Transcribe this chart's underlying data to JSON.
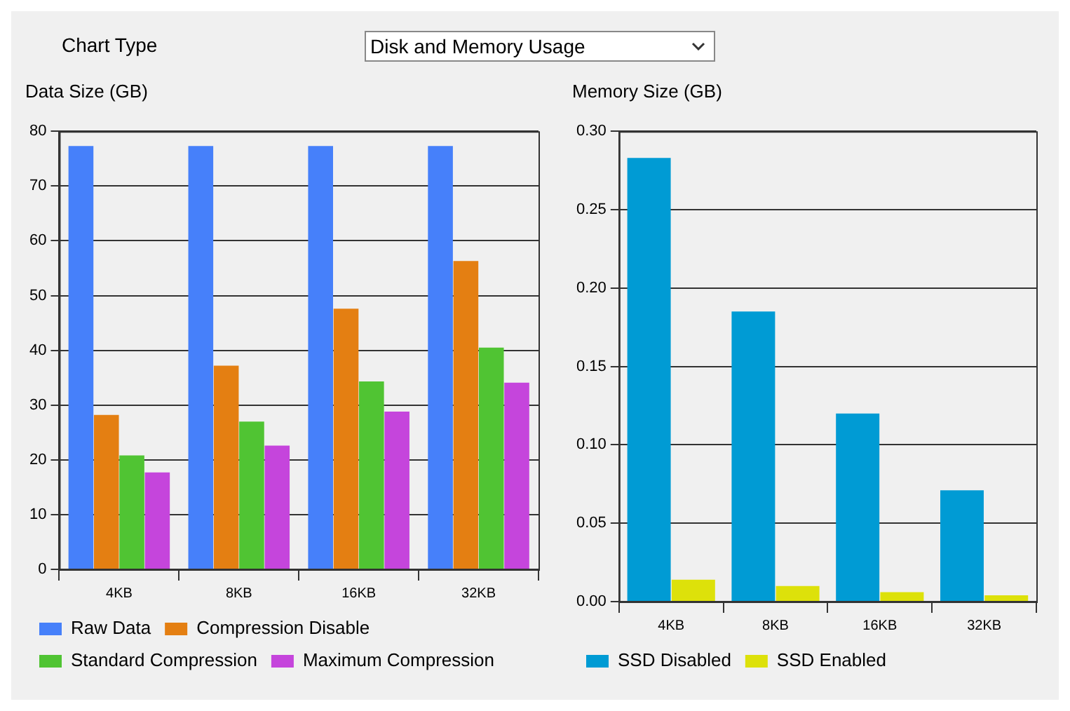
{
  "chart_data": [
    {
      "type": "bar",
      "title": "Data Size (GB)",
      "annotations": [
        "Chart Type",
        "Disk and Memory Usage"
      ],
      "categories": [
        "4KB",
        "8KB",
        "16KB",
        "32KB"
      ],
      "series": [
        {
          "name": "Raw Data",
          "color": "#4680fa",
          "values": [
            77.3,
            77.3,
            77.3,
            77.3
          ]
        },
        {
          "name": "Compression Disable",
          "color": "#e47f12",
          "values": [
            28.2,
            37.2,
            47.6,
            56.3
          ]
        },
        {
          "name": "Standard Compression",
          "color": "#50c433",
          "values": [
            20.8,
            27.0,
            34.3,
            40.5
          ]
        },
        {
          "name": "Maximum Compression",
          "color": "#c545dc",
          "values": [
            17.7,
            22.6,
            28.8,
            34.1
          ]
        }
      ],
      "ylim": [
        0,
        80
      ],
      "yticks": [
        0,
        10,
        20,
        30,
        40,
        50,
        60,
        70,
        80
      ],
      "grid": "y",
      "legend": "bottom"
    },
    {
      "type": "bar",
      "title": "Memory Size (GB)",
      "categories": [
        "4KB",
        "8KB",
        "16KB",
        "32KB"
      ],
      "series": [
        {
          "name": "SSD Disabled",
          "color": "#009bd4",
          "values": [
            0.283,
            0.185,
            0.12,
            0.071
          ]
        },
        {
          "name": "SSD Enabled",
          "color": "#dde10a",
          "values": [
            0.014,
            0.01,
            0.006,
            0.004
          ]
        }
      ],
      "ylim": [
        0,
        0.3
      ],
      "yticks": [
        {
          "value": 0,
          "label": "0.00"
        },
        {
          "value": 0.05,
          "label": "0.05"
        },
        {
          "value": 0.1,
          "label": "0.10"
        },
        {
          "value": 0.15,
          "label": "0.15"
        },
        {
          "value": 0.2,
          "label": "0.20"
        },
        {
          "value": 0.25,
          "label": "0.25"
        },
        {
          "value": 0.3,
          "label": "0.30"
        }
      ],
      "grid": "y",
      "legend": "bottom"
    }
  ]
}
